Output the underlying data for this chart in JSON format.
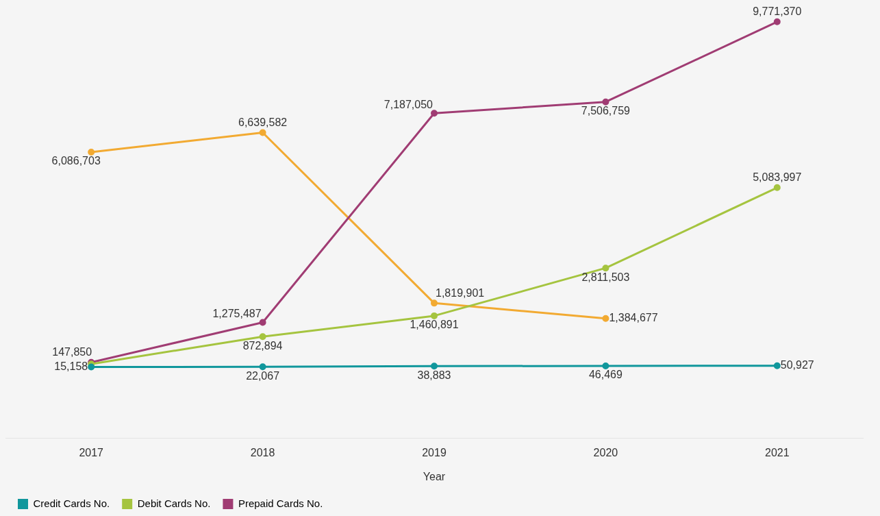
{
  "chart_data": {
    "type": "line",
    "xlabel": "Year",
    "categories": [
      "2017",
      "2018",
      "2019",
      "2020",
      "2021"
    ],
    "series": [
      {
        "name": "Credit Cards No.",
        "color": "#11979c",
        "values": [
          15158,
          22067,
          38883,
          46469,
          50927
        ],
        "value_labels": [
          "15,158",
          "22,067",
          "38,883",
          "46,469",
          "50,927"
        ]
      },
      {
        "name": "Debit Cards No.",
        "color": "#a5c43f",
        "values": [
          100000,
          872894,
          1460891,
          2811503,
          5083997
        ],
        "value_labels": [
          null,
          "872,894",
          "1,460,891",
          "2,811,503",
          "5,083,997"
        ]
      },
      {
        "name": "Prepaid Cards No.",
        "color": "#a03c73",
        "values": [
          147850,
          1275487,
          7187050,
          7506759,
          9771370
        ],
        "value_labels": [
          "147,850",
          "1,275,487",
          "7,187,050",
          "7,506,759",
          "9,771,370"
        ]
      },
      {
        "color": "#f2aa32",
        "values": [
          6086703,
          6639582,
          1819901,
          1384677,
          null
        ],
        "value_labels": [
          "6,086,703",
          "6,639,582",
          "1,819,901",
          "1,384,677",
          null
        ]
      }
    ],
    "legend": "bottom left",
    "marker": "circle",
    "line_style": "solid",
    "grid": false
  }
}
